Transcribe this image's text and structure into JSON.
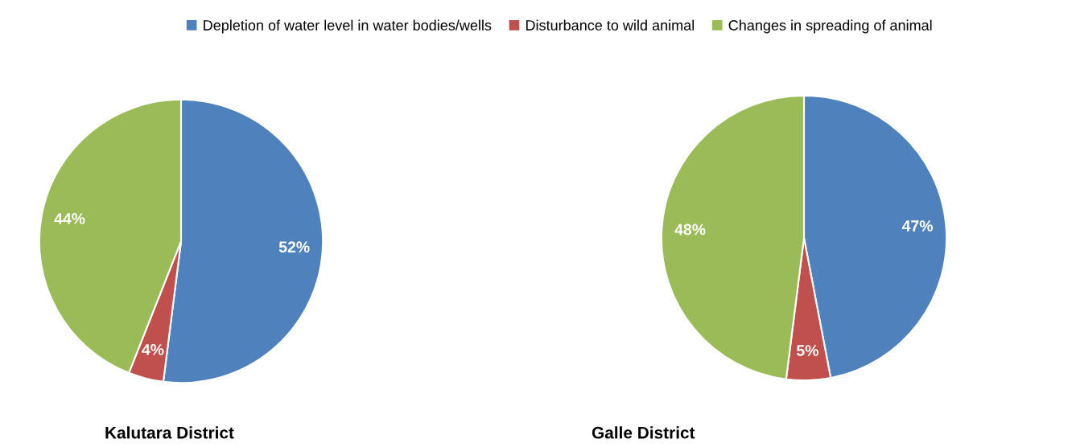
{
  "chart_data": [
    {
      "type": "pie",
      "title": "Kalutara District",
      "categories": [
        "Depletion of water level in water bodies/wells",
        "Disturbance to wild animal",
        "Changes in spreading of animal"
      ],
      "values": [
        52,
        4,
        44
      ],
      "colors": [
        "#4f81bd",
        "#c0504d",
        "#9bbb59"
      ],
      "value_labels": [
        "52%",
        "4%",
        "44%"
      ],
      "legend": "top"
    },
    {
      "type": "pie",
      "title": "Galle District",
      "categories": [
        null,
        null,
        null
      ],
      "values": [
        47,
        5,
        48
      ],
      "colors": [
        "#4f81bd",
        "#c0504d",
        "#9bbb59"
      ],
      "value_labels": [
        "47%",
        "5%",
        "48%"
      ]
    }
  ]
}
